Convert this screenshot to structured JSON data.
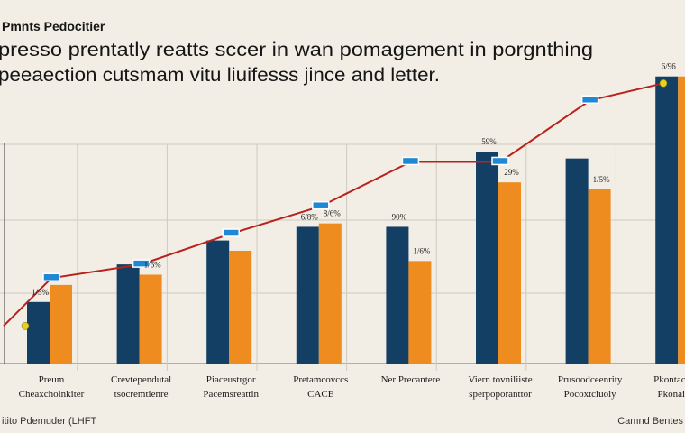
{
  "header": {
    "small_title": "Pmnts Pedocitier",
    "title_line1": "presso prentatly reatts sccer in wan pomagement in porgnthing",
    "title_line2": "peeaection cutsmam vitu liuifesss jince and letter."
  },
  "footer": {
    "left_note": "itito Pdemuder (LHFT",
    "right_note": "Camnd Bentes"
  },
  "colors": {
    "background": "#f2eee5",
    "navy": "#123f63",
    "orange": "#ef8c1f",
    "trend_line": "#b9211c",
    "marker_blue": "#1e88d6",
    "marker_yellow": "#e7d11f",
    "grid": "#cfcac0"
  },
  "chart_data": {
    "type": "bar",
    "categories": [
      [
        "Preum",
        "Cheaxcholnkiter"
      ],
      [
        "Crevtependutal",
        "tsocremtienre"
      ],
      [
        "Piaceustrgor",
        "Pacemsreattin"
      ],
      [
        "Pretamcovccs",
        "CACE"
      ],
      [
        "Ner Precantere",
        ""
      ],
      [
        "Viern tovniliiste",
        "sperpoporanttor"
      ],
      [
        "Prusoodceenrity",
        "Pocoxtcluoly"
      ],
      [
        "Pkontachituo",
        "Pkonaitters"
      ]
    ],
    "series": [
      {
        "values": [
          18,
          29,
          36,
          40,
          40,
          62,
          60,
          84
        ]
      },
      {
        "values": [
          23,
          26,
          33,
          41,
          30,
          53,
          51,
          84
        ]
      }
    ],
    "data_labels": [
      [
        "1/5%",
        "",
        "",
        "6/8%",
        "90%",
        "59%",
        "",
        "6/96"
      ],
      [
        "",
        "1/6%",
        "",
        "8/6%",
        "1/6%",
        "29%",
        "1/5%",
        "6/9"
      ]
    ],
    "trend": [
      11,
      25,
      29,
      38,
      46,
      59,
      59,
      77,
      82
    ],
    "ylim": [
      0,
      90
    ],
    "grid": true
  }
}
